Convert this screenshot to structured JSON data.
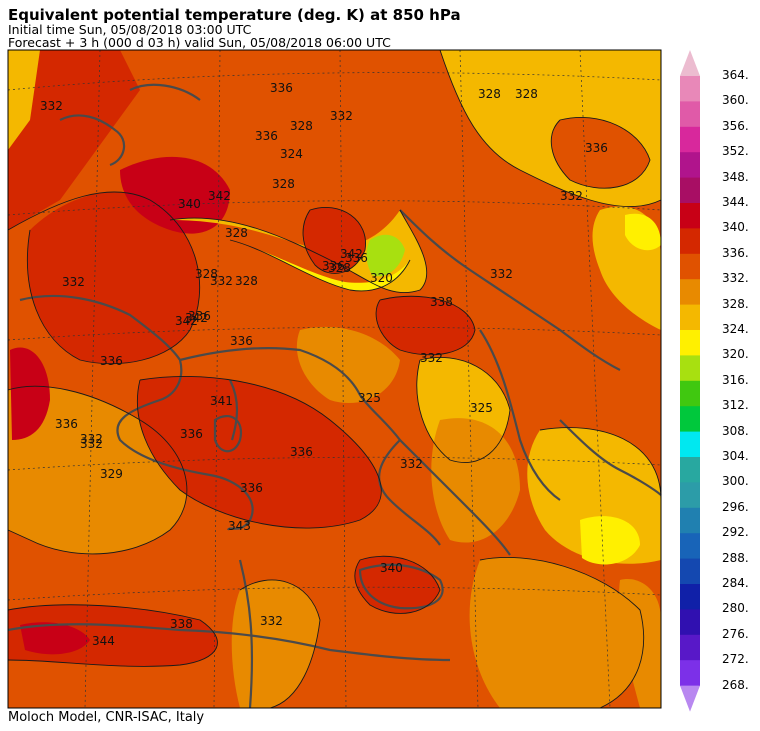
{
  "header": {
    "title": "Equivalent potential temperature (deg. K) at 850 hPa",
    "initial": "Initial time  Sun, 05/08/2018  03:00 UTC",
    "forecast": "Forecast  +   3 h  (000 d 03 h)  valid Sun, 05/08/2018 06:00 UTC"
  },
  "footer": "Moloch Model, CNR-ISAC, Italy",
  "colorbar": {
    "labels": [
      "364.",
      "360.",
      "356.",
      "352.",
      "348.",
      "344.",
      "340.",
      "336.",
      "332.",
      "328.",
      "324.",
      "320.",
      "316.",
      "312.",
      "308.",
      "304.",
      "300.",
      "296.",
      "292.",
      "288.",
      "284.",
      "280.",
      "276.",
      "272.",
      "268."
    ],
    "colors": [
      "#e888b8",
      "#e05aa8",
      "#d8289c",
      "#b0148c",
      "#a80e64",
      "#c80016",
      "#d42800",
      "#e05200",
      "#e88a00",
      "#f4b800",
      "#fff000",
      "#a8e010",
      "#40c810",
      "#00c83c",
      "#00e8f0",
      "#28a8a0",
      "#2c9ca8",
      "#2080b0",
      "#1864b8",
      "#1448b0",
      "#1020a8",
      "#3010b0",
      "#5818c8",
      "#7c30e8"
    ],
    "top_arrow": "#ecbcd0",
    "bottom_arrow": "#b888f0"
  },
  "map": {
    "contour_labels": [
      "332",
      "336",
      "336",
      "328",
      "328",
      "332",
      "328",
      "324",
      "332",
      "340",
      "342",
      "336",
      "332",
      "336",
      "328",
      "328",
      "320",
      "328",
      "342",
      "342",
      "342",
      "336",
      "338",
      "336",
      "328",
      "332",
      "325",
      "325",
      "336",
      "341",
      "336",
      "336",
      "332",
      "328",
      "329",
      "336",
      "343",
      "332",
      "332",
      "332",
      "332",
      "340",
      "344",
      "338",
      "336",
      "332",
      "336"
    ]
  }
}
